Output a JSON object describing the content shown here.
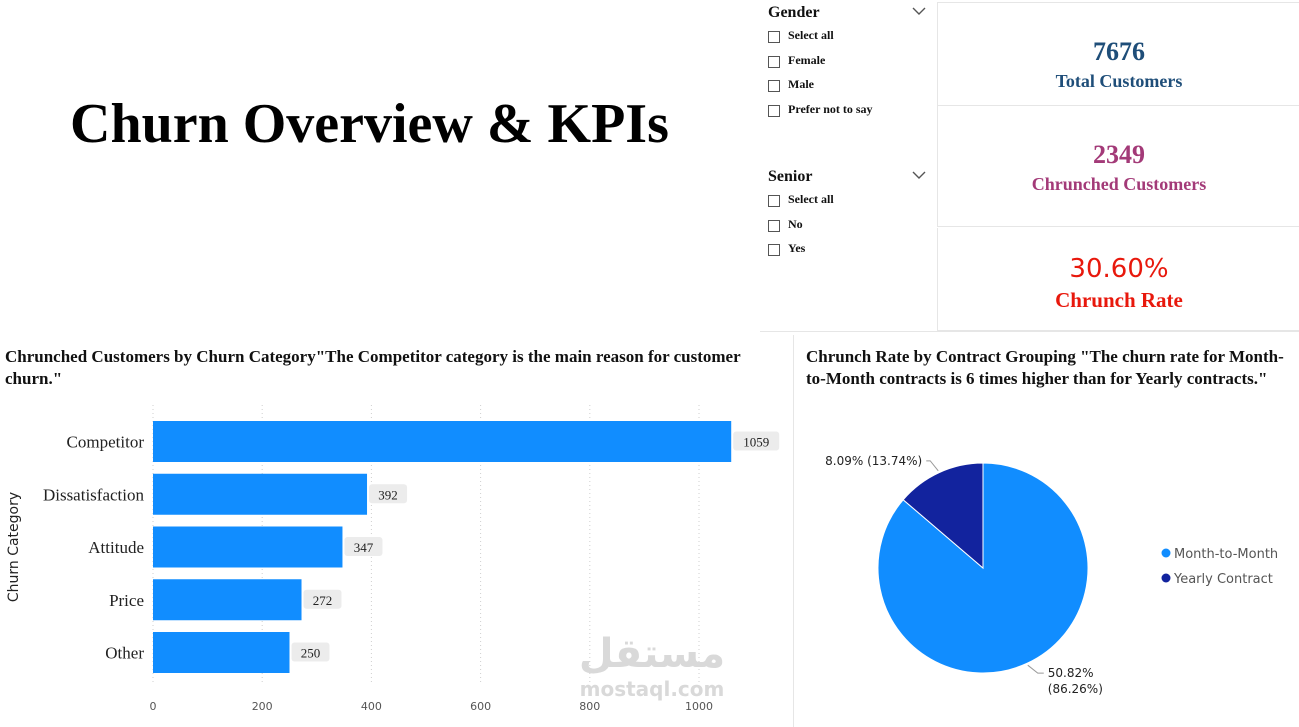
{
  "page": {
    "title": "Churn Overview & KPIs"
  },
  "slicers": {
    "gender": {
      "title": "Gender",
      "options": [
        "Select all",
        "Female",
        "Male",
        "Prefer not to say"
      ]
    },
    "senior": {
      "title": "Senior",
      "options": [
        "Select all",
        "No",
        "Yes"
      ]
    }
  },
  "kpis": {
    "total": {
      "value": "7676",
      "label": "Total Customers",
      "color": "#1f4e79"
    },
    "churned": {
      "value": "2349",
      "label": "Chrunched Customers",
      "color": "#a33a78"
    },
    "rate": {
      "value": "30.60%",
      "label": "Chrunch Rate",
      "color": "#e8180c"
    }
  },
  "bar_panel": {
    "title": "Chrunched Customers by Churn Category\"The Competitor category is the main reason for customer churn.\""
  },
  "pie_panel": {
    "title": "Chrunch Rate by Contract Grouping \"The churn rate for Month-to-Month contracts is 6 times higher than for Yearly contracts.\""
  },
  "watermark": {
    "arabic": "مستقل",
    "latin": "mostaql.com"
  },
  "colors": {
    "bar": "#118dff",
    "pie_primary": "#118dff",
    "pie_secondary": "#12239e"
  },
  "chart_data": [
    {
      "type": "bar",
      "orientation": "horizontal",
      "ylabel": "Churn Category",
      "categories": [
        "Competitor",
        "Dissatisfaction",
        "Attitude",
        "Price",
        "Other"
      ],
      "values": [
        1059,
        392,
        347,
        272,
        250
      ],
      "data_labels": [
        "1059",
        "392",
        "347",
        "272",
        "250"
      ],
      "xlim": [
        0,
        1100
      ],
      "x_ticks": [
        0,
        200,
        400,
        600,
        800,
        1000
      ],
      "x_tick_labels": [
        "0",
        "200",
        "400",
        "600",
        "800",
        "1000"
      ],
      "grid": true
    },
    {
      "type": "pie",
      "slices": [
        {
          "name": "Month-to-Month",
          "value": 86.26,
          "label": "50.82%",
          "sublabel": "(86.26%)"
        },
        {
          "name": "Yearly Contract",
          "value": 13.74,
          "label": "8.09% (13.74%)"
        }
      ],
      "legend_position": "right"
    }
  ]
}
